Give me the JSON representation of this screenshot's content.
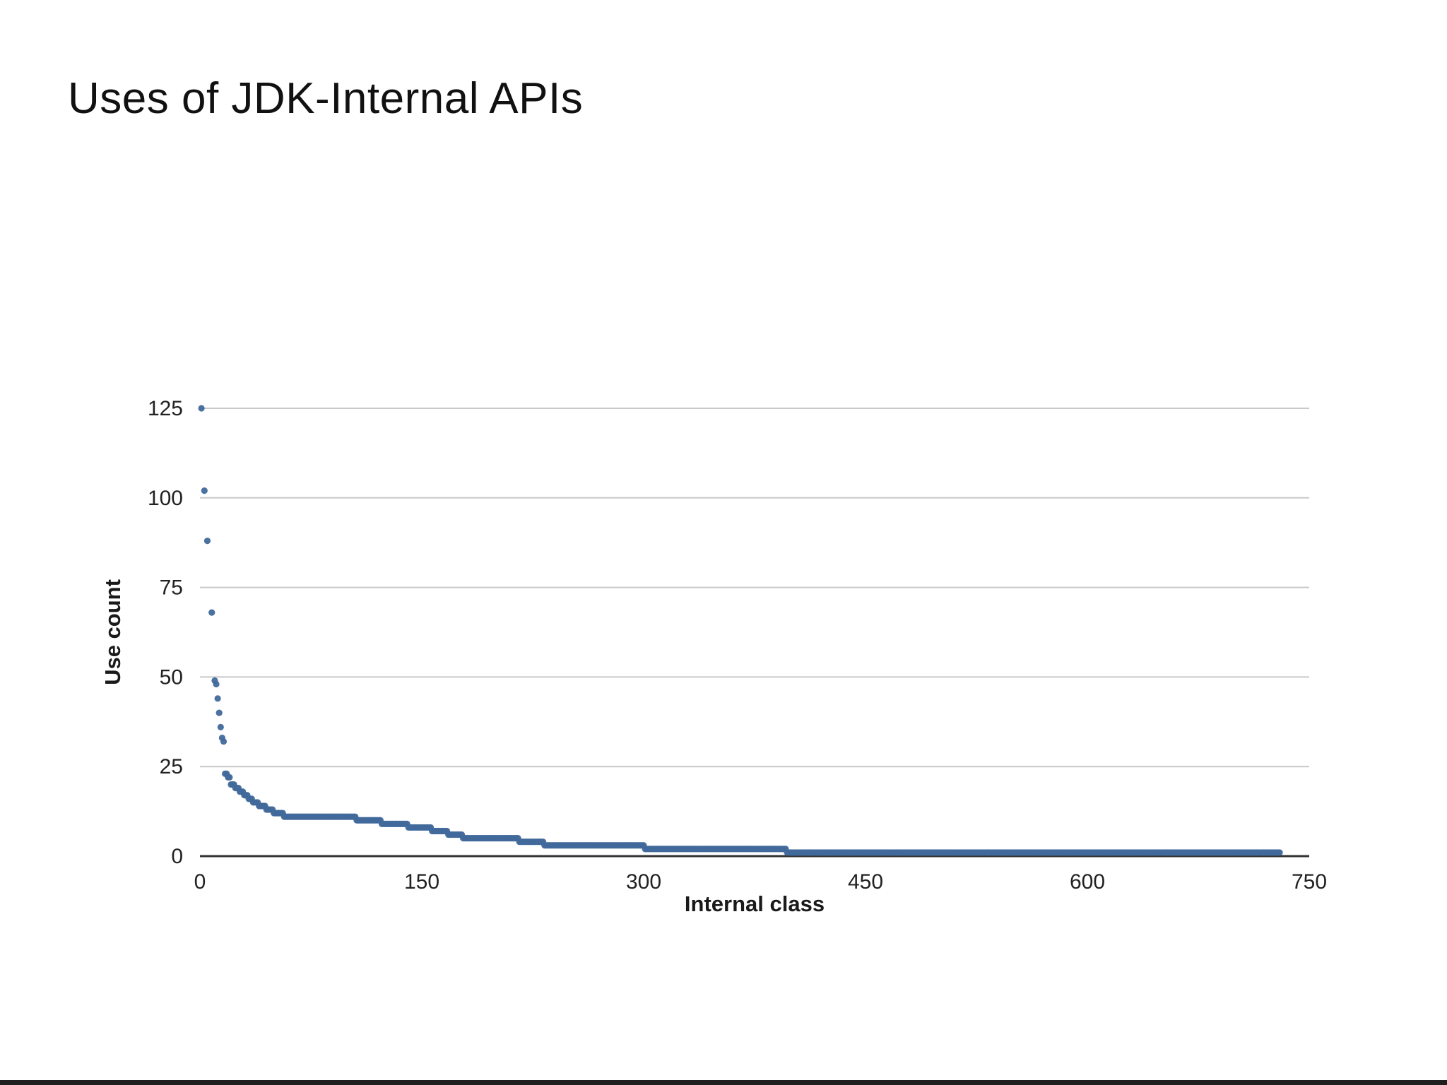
{
  "slide": {
    "title": "Uses of JDK-Internal APIs"
  },
  "chart_data": {
    "type": "scatter",
    "title": "",
    "xlabel": "Internal class",
    "ylabel": "Use count",
    "xlim": [
      0,
      750
    ],
    "ylim": [
      0,
      125
    ],
    "xticks": [
      0,
      150,
      300,
      450,
      600,
      750
    ],
    "yticks": [
      0,
      25,
      50,
      75,
      100,
      125
    ],
    "grid": "horizontal",
    "legend": "none",
    "point_color": "#41699b",
    "gridline_color": "#c9c9c9",
    "axis_line_color": "#333333",
    "outlier_points": [
      [
        1,
        125
      ],
      [
        3,
        102
      ],
      [
        5,
        88
      ],
      [
        8,
        68
      ],
      [
        10,
        49
      ],
      [
        11,
        48
      ],
      [
        12,
        44
      ],
      [
        13,
        40
      ],
      [
        14,
        36
      ],
      [
        15,
        33
      ],
      [
        16,
        32
      ]
    ],
    "tail_segments": [
      [
        23,
        17,
        18
      ],
      [
        22,
        19,
        20
      ],
      [
        20,
        21,
        23
      ],
      [
        19,
        24,
        26
      ],
      [
        18,
        27,
        29
      ],
      [
        17,
        30,
        32
      ],
      [
        16,
        33,
        35
      ],
      [
        15,
        36,
        39
      ],
      [
        14,
        40,
        44
      ],
      [
        13,
        45,
        49
      ],
      [
        12,
        50,
        56
      ],
      [
        11,
        57,
        105
      ],
      [
        10,
        106,
        122
      ],
      [
        9,
        123,
        140
      ],
      [
        8,
        141,
        156
      ],
      [
        7,
        157,
        167
      ],
      [
        6,
        168,
        177
      ],
      [
        5,
        178,
        215
      ],
      [
        4,
        216,
        232
      ],
      [
        3,
        233,
        300
      ],
      [
        2,
        301,
        396
      ],
      [
        1,
        397,
        730
      ]
    ]
  }
}
